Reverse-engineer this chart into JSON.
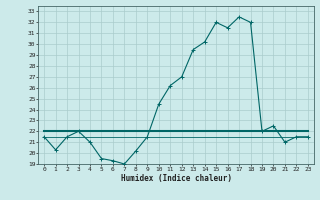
{
  "title": "",
  "xlabel": "Humidex (Indice chaleur)",
  "ylabel": "",
  "background_color": "#cceaea",
  "grid_color": "#aacccc",
  "line_color": "#006666",
  "xlim": [
    -0.5,
    23.5
  ],
  "ylim": [
    19,
    33.5
  ],
  "yticks": [
    19,
    20,
    21,
    22,
    23,
    24,
    25,
    26,
    27,
    28,
    29,
    30,
    31,
    32,
    33
  ],
  "xticks": [
    0,
    1,
    2,
    3,
    4,
    5,
    6,
    7,
    8,
    9,
    10,
    11,
    12,
    13,
    14,
    15,
    16,
    17,
    18,
    19,
    20,
    21,
    22,
    23
  ],
  "curve1_x": [
    0,
    1,
    2,
    3,
    4,
    5,
    6,
    7,
    8,
    9,
    10,
    11,
    12,
    13,
    14,
    15,
    16,
    17,
    18,
    19,
    20,
    21,
    22,
    23
  ],
  "curve1_y": [
    21.5,
    20.3,
    21.5,
    22.0,
    21.0,
    19.5,
    19.3,
    19.0,
    20.2,
    21.5,
    24.5,
    26.2,
    27.0,
    29.5,
    30.2,
    32.0,
    31.5,
    32.5,
    32.0,
    22.0,
    22.5,
    21.0,
    21.5,
    21.5
  ],
  "curve2_x": [
    0,
    1,
    2,
    3,
    4,
    5,
    6,
    7,
    8,
    9,
    10,
    11,
    12,
    13,
    14,
    15,
    16,
    17,
    18,
    19,
    20,
    21,
    22,
    23
  ],
  "curve2_y": [
    22.0,
    22.0,
    22.0,
    22.0,
    22.0,
    22.0,
    22.0,
    22.0,
    22.0,
    22.0,
    22.0,
    22.0,
    22.0,
    22.0,
    22.0,
    22.0,
    22.0,
    22.0,
    22.0,
    22.0,
    22.0,
    22.0,
    22.0,
    22.0
  ],
  "curve3_x": [
    0,
    1,
    2,
    3,
    4,
    5,
    6,
    7,
    8,
    9,
    10,
    11,
    12,
    13,
    14,
    15,
    16,
    17,
    18,
    19,
    20,
    21,
    22,
    23
  ],
  "curve3_y": [
    21.5,
    21.5,
    21.5,
    21.5,
    21.5,
    21.5,
    21.5,
    21.5,
    21.5,
    21.5,
    21.5,
    21.5,
    21.5,
    21.5,
    21.5,
    21.5,
    21.5,
    21.5,
    21.5,
    21.5,
    21.5,
    21.5,
    21.5,
    21.5
  ]
}
